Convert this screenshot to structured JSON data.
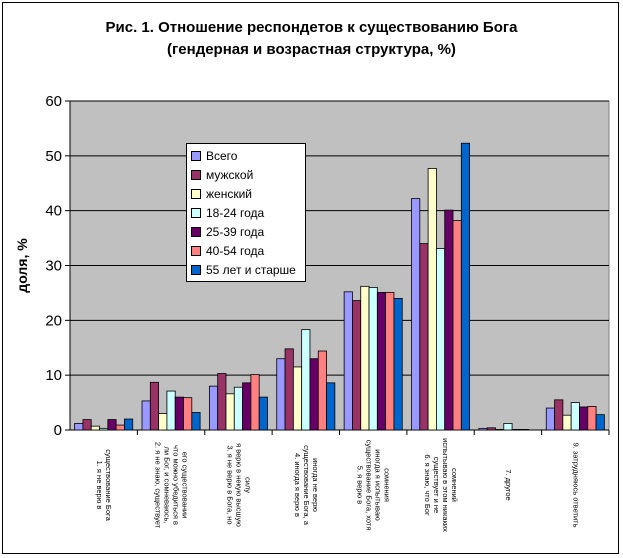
{
  "title_line1": "Рис. 1. Отношение респондетов к существованию Бога",
  "title_line2": "(гендерная и возрастная структура, %)",
  "chart_data": {
    "type": "bar",
    "ylabel": "доля, %",
    "xlabel": "",
    "ylim": [
      0,
      60
    ],
    "yticks": [
      0,
      10,
      20,
      30,
      40,
      50,
      60
    ],
    "grid": true,
    "plot_background": "#c0c0c0",
    "legend_placement": "top-left inside plot",
    "categories": [
      "1. я не верю в существование Бога",
      "2. я не знаю, существует ли Бог, и сомневаюсь, что можно убедиться в его существовании",
      "3. я не верю в Бога, но я верю в некую высшую силу",
      "4. иногда я верю в существование Бога, а иногда не верю",
      "5. я верю в существование Бога, хотя иногда я испытываю сомнения",
      "6. я знаю, что Бог существует и не испытываю в этом никаких сомнений",
      "7. другое",
      "9. затрудняюсь ответить"
    ],
    "series": [
      {
        "name": "Всего",
        "color": "#9999ff",
        "values": [
          1.2,
          5.3,
          8.0,
          13.0,
          25.2,
          42.2,
          0.3,
          4.0
        ]
      },
      {
        "name": "мужской",
        "color": "#993366",
        "values": [
          1.9,
          8.7,
          10.3,
          14.8,
          23.6,
          34.0,
          0.4,
          5.5
        ]
      },
      {
        "name": "женский",
        "color": "#ffffcc",
        "values": [
          0.7,
          3.0,
          6.6,
          11.5,
          26.2,
          47.7,
          0.1,
          2.7
        ]
      },
      {
        "name": "18-24 года",
        "color": "#ccffff",
        "values": [
          0.3,
          7.1,
          7.8,
          18.3,
          26.0,
          33.1,
          1.2,
          5.0
        ]
      },
      {
        "name": "25-39 года",
        "color": "#660066",
        "values": [
          1.9,
          6.0,
          8.6,
          13.0,
          25.1,
          40.1,
          0.1,
          4.2
        ]
      },
      {
        "name": "40-54 года",
        "color": "#ff8080",
        "values": [
          0.9,
          5.9,
          10.1,
          14.4,
          25.1,
          38.2,
          0.1,
          4.3
        ]
      },
      {
        "name": "55 лет и старше",
        "color": "#0066cc",
        "values": [
          2.0,
          3.2,
          6.0,
          8.6,
          24.0,
          52.3,
          0.0,
          2.8
        ]
      }
    ]
  }
}
